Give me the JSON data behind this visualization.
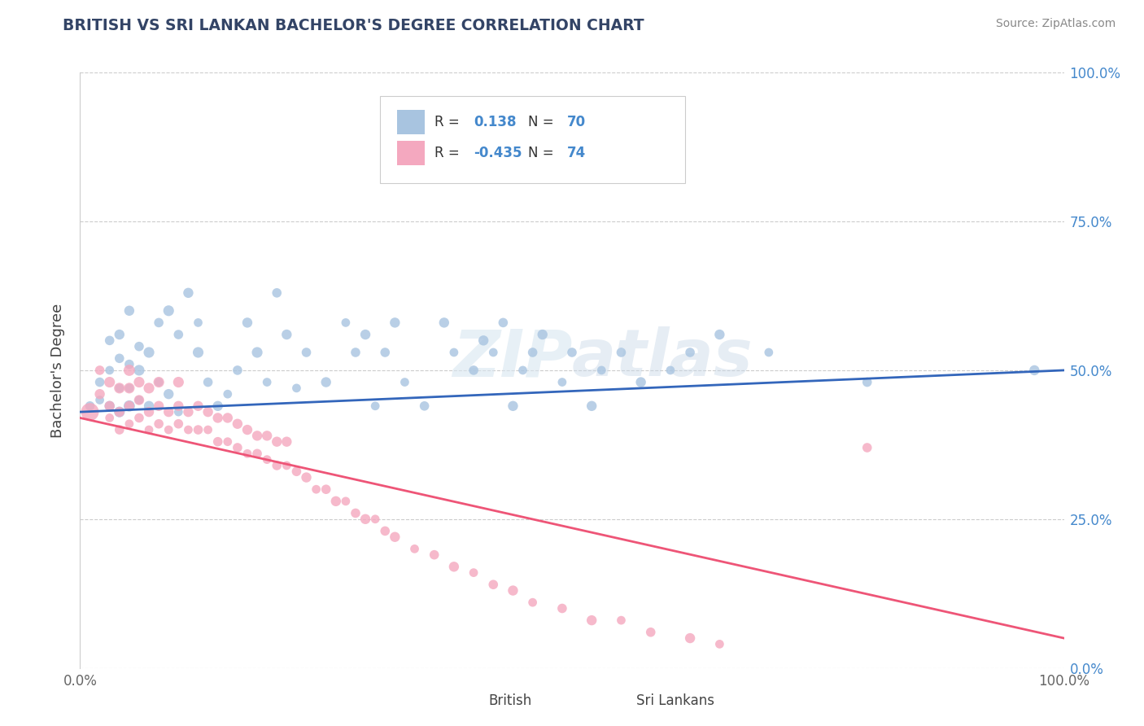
{
  "title": "BRITISH VS SRI LANKAN BACHELOR'S DEGREE CORRELATION CHART",
  "source": "Source: ZipAtlas.com",
  "ylabel": "Bachelor's Degree",
  "british_R": "0.138",
  "british_N": "70",
  "srilankan_R": "-0.435",
  "srilankan_N": "74",
  "british_color": "#a8c4e0",
  "srilankan_color": "#f4a8bf",
  "line_british_color": "#3366bb",
  "line_srilankan_color": "#ee5577",
  "grid_color": "#cccccc",
  "title_color": "#334466",
  "tick_color": "#4488cc",
  "background_color": "#ffffff",
  "british_x": [
    0.01,
    0.02,
    0.02,
    0.03,
    0.03,
    0.03,
    0.04,
    0.04,
    0.04,
    0.04,
    0.05,
    0.05,
    0.05,
    0.05,
    0.06,
    0.06,
    0.06,
    0.07,
    0.07,
    0.08,
    0.08,
    0.09,
    0.09,
    0.1,
    0.1,
    0.11,
    0.12,
    0.12,
    0.13,
    0.14,
    0.15,
    0.16,
    0.17,
    0.18,
    0.19,
    0.2,
    0.21,
    0.22,
    0.23,
    0.25,
    0.27,
    0.28,
    0.29,
    0.3,
    0.31,
    0.32,
    0.33,
    0.35,
    0.37,
    0.38,
    0.4,
    0.41,
    0.42,
    0.43,
    0.44,
    0.45,
    0.46,
    0.47,
    0.49,
    0.5,
    0.52,
    0.53,
    0.55,
    0.57,
    0.6,
    0.62,
    0.65,
    0.7,
    0.8,
    0.97
  ],
  "british_y": [
    0.44,
    0.45,
    0.48,
    0.44,
    0.5,
    0.55,
    0.43,
    0.47,
    0.52,
    0.56,
    0.44,
    0.47,
    0.51,
    0.6,
    0.45,
    0.5,
    0.54,
    0.44,
    0.53,
    0.48,
    0.58,
    0.46,
    0.6,
    0.43,
    0.56,
    0.63,
    0.53,
    0.58,
    0.48,
    0.44,
    0.46,
    0.5,
    0.58,
    0.53,
    0.48,
    0.63,
    0.56,
    0.47,
    0.53,
    0.48,
    0.58,
    0.53,
    0.56,
    0.44,
    0.53,
    0.58,
    0.48,
    0.44,
    0.58,
    0.53,
    0.5,
    0.55,
    0.53,
    0.58,
    0.44,
    0.5,
    0.53,
    0.56,
    0.48,
    0.53,
    0.44,
    0.5,
    0.53,
    0.48,
    0.5,
    0.53,
    0.56,
    0.53,
    0.48,
    0.5
  ],
  "british_sizes": [
    70,
    60,
    70,
    80,
    60,
    70,
    90,
    60,
    70,
    80,
    100,
    60,
    70,
    80,
    60,
    90,
    70,
    80,
    90,
    60,
    70,
    80,
    90,
    60,
    70,
    80,
    90,
    60,
    70,
    80,
    60,
    70,
    80,
    90,
    60,
    70,
    80,
    60,
    70,
    80,
    60,
    70,
    80,
    60,
    70,
    80,
    60,
    70,
    80,
    60,
    70,
    80,
    60,
    70,
    80,
    60,
    70,
    80,
    60,
    70,
    80,
    60,
    70,
    80,
    60,
    70,
    80,
    60,
    70,
    80
  ],
  "srilankan_x": [
    0.01,
    0.02,
    0.02,
    0.03,
    0.03,
    0.03,
    0.04,
    0.04,
    0.04,
    0.05,
    0.05,
    0.05,
    0.05,
    0.06,
    0.06,
    0.06,
    0.07,
    0.07,
    0.07,
    0.08,
    0.08,
    0.08,
    0.09,
    0.09,
    0.1,
    0.1,
    0.1,
    0.11,
    0.11,
    0.12,
    0.12,
    0.13,
    0.13,
    0.14,
    0.14,
    0.15,
    0.15,
    0.16,
    0.16,
    0.17,
    0.17,
    0.18,
    0.18,
    0.19,
    0.19,
    0.2,
    0.2,
    0.21,
    0.21,
    0.22,
    0.23,
    0.24,
    0.25,
    0.26,
    0.27,
    0.28,
    0.29,
    0.3,
    0.31,
    0.32,
    0.34,
    0.36,
    0.38,
    0.4,
    0.42,
    0.44,
    0.46,
    0.49,
    0.52,
    0.55,
    0.58,
    0.62,
    0.65,
    0.8
  ],
  "srilankan_y": [
    0.43,
    0.46,
    0.5,
    0.42,
    0.44,
    0.48,
    0.4,
    0.43,
    0.47,
    0.41,
    0.44,
    0.47,
    0.5,
    0.42,
    0.45,
    0.48,
    0.4,
    0.43,
    0.47,
    0.41,
    0.44,
    0.48,
    0.4,
    0.43,
    0.41,
    0.44,
    0.48,
    0.4,
    0.43,
    0.4,
    0.44,
    0.4,
    0.43,
    0.38,
    0.42,
    0.38,
    0.42,
    0.37,
    0.41,
    0.36,
    0.4,
    0.36,
    0.39,
    0.35,
    0.39,
    0.34,
    0.38,
    0.34,
    0.38,
    0.33,
    0.32,
    0.3,
    0.3,
    0.28,
    0.28,
    0.26,
    0.25,
    0.25,
    0.23,
    0.22,
    0.2,
    0.19,
    0.17,
    0.16,
    0.14,
    0.13,
    0.11,
    0.1,
    0.08,
    0.08,
    0.06,
    0.05,
    0.04,
    0.37
  ],
  "srilankan_sizes": [
    250,
    80,
    70,
    60,
    80,
    90,
    70,
    80,
    90,
    60,
    80,
    90,
    100,
    70,
    80,
    90,
    60,
    80,
    90,
    70,
    80,
    90,
    60,
    80,
    70,
    80,
    90,
    60,
    80,
    70,
    80,
    60,
    80,
    70,
    80,
    60,
    80,
    70,
    80,
    60,
    80,
    70,
    80,
    60,
    80,
    70,
    80,
    60,
    80,
    70,
    80,
    60,
    70,
    80,
    60,
    70,
    80,
    60,
    70,
    80,
    60,
    70,
    80,
    60,
    70,
    80,
    60,
    70,
    80,
    60,
    70,
    80,
    60,
    70
  ],
  "ytick_vals": [
    0.0,
    0.25,
    0.5,
    0.75,
    1.0
  ],
  "ytick_labels": [
    "0.0%",
    "25.0%",
    "50.0%",
    "75.0%",
    "100.0%"
  ]
}
